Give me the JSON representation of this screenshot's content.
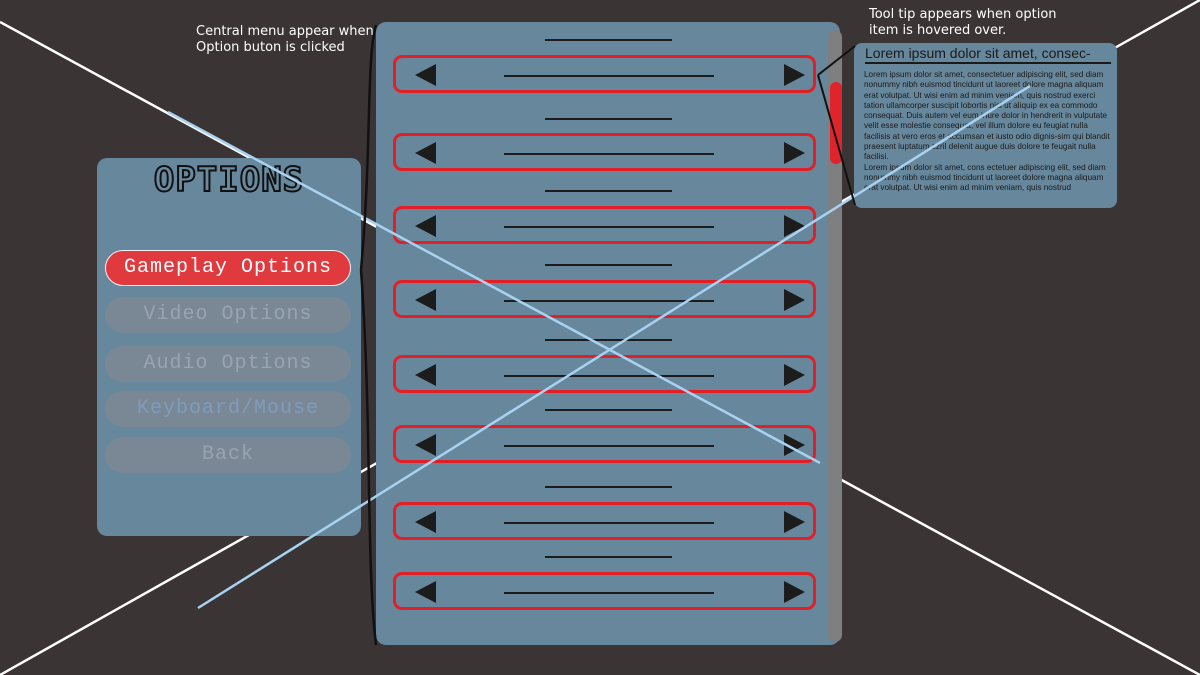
{
  "annotations": {
    "central_menu_note": "Central menu appear when\nOption buton is clicked",
    "tooltip_note": "Tool tip appears when option\nitem is hovered over."
  },
  "options_panel": {
    "title": "OPTIONS",
    "buttons": [
      {
        "label": "Gameplay Options",
        "state": "selected"
      },
      {
        "label": "Video Options",
        "state": "inactive"
      },
      {
        "label": "Audio Options",
        "state": "inactive"
      },
      {
        "label": "Keyboard/Mouse",
        "state": "inactive"
      },
      {
        "label": "Back",
        "state": "inactive"
      }
    ]
  },
  "central_menu": {
    "row_count": 8,
    "left_arrow_icon": "triangle-left-icon",
    "right_arrow_icon": "triangle-right-icon",
    "scrollbar_position": 0.1
  },
  "tooltip": {
    "title": "Lorem ipsum dolor sit amet, consec-",
    "body_1": "Lorem ipsum dolor sit amet, consectetuer adipiscing elit, sed diam nonummy nibh euismod tincidunt ut laoreet dolore magna aliquam erat volutpat. Ut wisi enim ad minim veniam, quis nostrud exerci tation ullamcorper suscipit lobortis nisl ut aliquip ex ea commodo consequat. Duis autem vel eum iriure dolor in hendrerit in vulputate velit esse molestie consequat, vel illum dolore eu feugiat nulla facilisis at vero eros et accumsan et iusto odio dignis-sim qui blandit praesent luptatum zzril delenit augue duis dolore te feugait nulla facilisi.",
    "body_2": "Lorem ipsum dolor sit amet, cons ectetuer adipiscing elit, sed diam nonummy nibh euismod tincidunt ut laoreet dolore magna aliquam erat volutpat. Ut wisi enim ad minim veniam, quis nostrud"
  },
  "colors": {
    "background": "#3a3534",
    "panel": "#67879c",
    "accent_red": "#e02026",
    "selected_button": "#e03a3e",
    "inactive_button": "#7a8896",
    "crossing_line_light": "#a9d2f0"
  }
}
